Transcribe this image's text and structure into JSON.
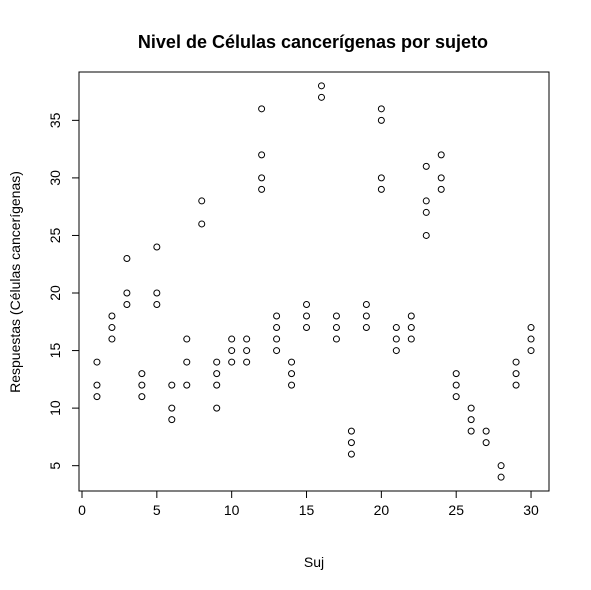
{
  "chart_data": {
    "type": "scatter",
    "title": "Nivel de Células cancerígenas por sujeto",
    "xlabel": "Suj",
    "ylabel": "Respuestas (Células cancerígenas)",
    "xlim": [
      -0.2,
      31.2
    ],
    "ylim": [
      2.8,
      39.2
    ],
    "xticks": [
      0,
      5,
      10,
      15,
      20,
      25,
      30
    ],
    "yticks": [
      5,
      10,
      15,
      20,
      25,
      30,
      35
    ],
    "marker": "open-circle",
    "grid": false,
    "legend": "none",
    "colors": {
      "point": "#000000",
      "axis": "#000000",
      "background": "#ffffff"
    },
    "points": [
      [
        1,
        14
      ],
      [
        1,
        12
      ],
      [
        1,
        11
      ],
      [
        2,
        18
      ],
      [
        2,
        17
      ],
      [
        2,
        16
      ],
      [
        3,
        23
      ],
      [
        3,
        20
      ],
      [
        3,
        19
      ],
      [
        4,
        13
      ],
      [
        4,
        12
      ],
      [
        4,
        11
      ],
      [
        5,
        24
      ],
      [
        5,
        20
      ],
      [
        5,
        19
      ],
      [
        6,
        12
      ],
      [
        6,
        10
      ],
      [
        6,
        9
      ],
      [
        7,
        16
      ],
      [
        7,
        14
      ],
      [
        7,
        12
      ],
      [
        8,
        28
      ],
      [
        8,
        26
      ],
      [
        9,
        14
      ],
      [
        9,
        13
      ],
      [
        9,
        12
      ],
      [
        9,
        10
      ],
      [
        10,
        16
      ],
      [
        10,
        15
      ],
      [
        10,
        14
      ],
      [
        11,
        16
      ],
      [
        11,
        15
      ],
      [
        11,
        14
      ],
      [
        12,
        36
      ],
      [
        12,
        32
      ],
      [
        12,
        30
      ],
      [
        12,
        29
      ],
      [
        13,
        18
      ],
      [
        13,
        17
      ],
      [
        13,
        16
      ],
      [
        13,
        15
      ],
      [
        14,
        14
      ],
      [
        14,
        13
      ],
      [
        14,
        12
      ],
      [
        15,
        19
      ],
      [
        15,
        18
      ],
      [
        15,
        17
      ],
      [
        16,
        38
      ],
      [
        16,
        37
      ],
      [
        17,
        18
      ],
      [
        17,
        17
      ],
      [
        17,
        16
      ],
      [
        18,
        8
      ],
      [
        18,
        7
      ],
      [
        18,
        6
      ],
      [
        19,
        19
      ],
      [
        19,
        18
      ],
      [
        19,
        17
      ],
      [
        20,
        36
      ],
      [
        20,
        35
      ],
      [
        20,
        30
      ],
      [
        20,
        29
      ],
      [
        21,
        17
      ],
      [
        21,
        16
      ],
      [
        21,
        15
      ],
      [
        22,
        18
      ],
      [
        22,
        17
      ],
      [
        22,
        16
      ],
      [
        23,
        31
      ],
      [
        23,
        28
      ],
      [
        23,
        27
      ],
      [
        23,
        25
      ],
      [
        24,
        32
      ],
      [
        24,
        30
      ],
      [
        24,
        29
      ],
      [
        25,
        13
      ],
      [
        25,
        12
      ],
      [
        25,
        11
      ],
      [
        26,
        10
      ],
      [
        26,
        9
      ],
      [
        26,
        8
      ],
      [
        27,
        8
      ],
      [
        27,
        7
      ],
      [
        28,
        5
      ],
      [
        28,
        4
      ],
      [
        29,
        14
      ],
      [
        29,
        13
      ],
      [
        29,
        12
      ],
      [
        30,
        17
      ],
      [
        30,
        16
      ],
      [
        30,
        15
      ]
    ]
  }
}
